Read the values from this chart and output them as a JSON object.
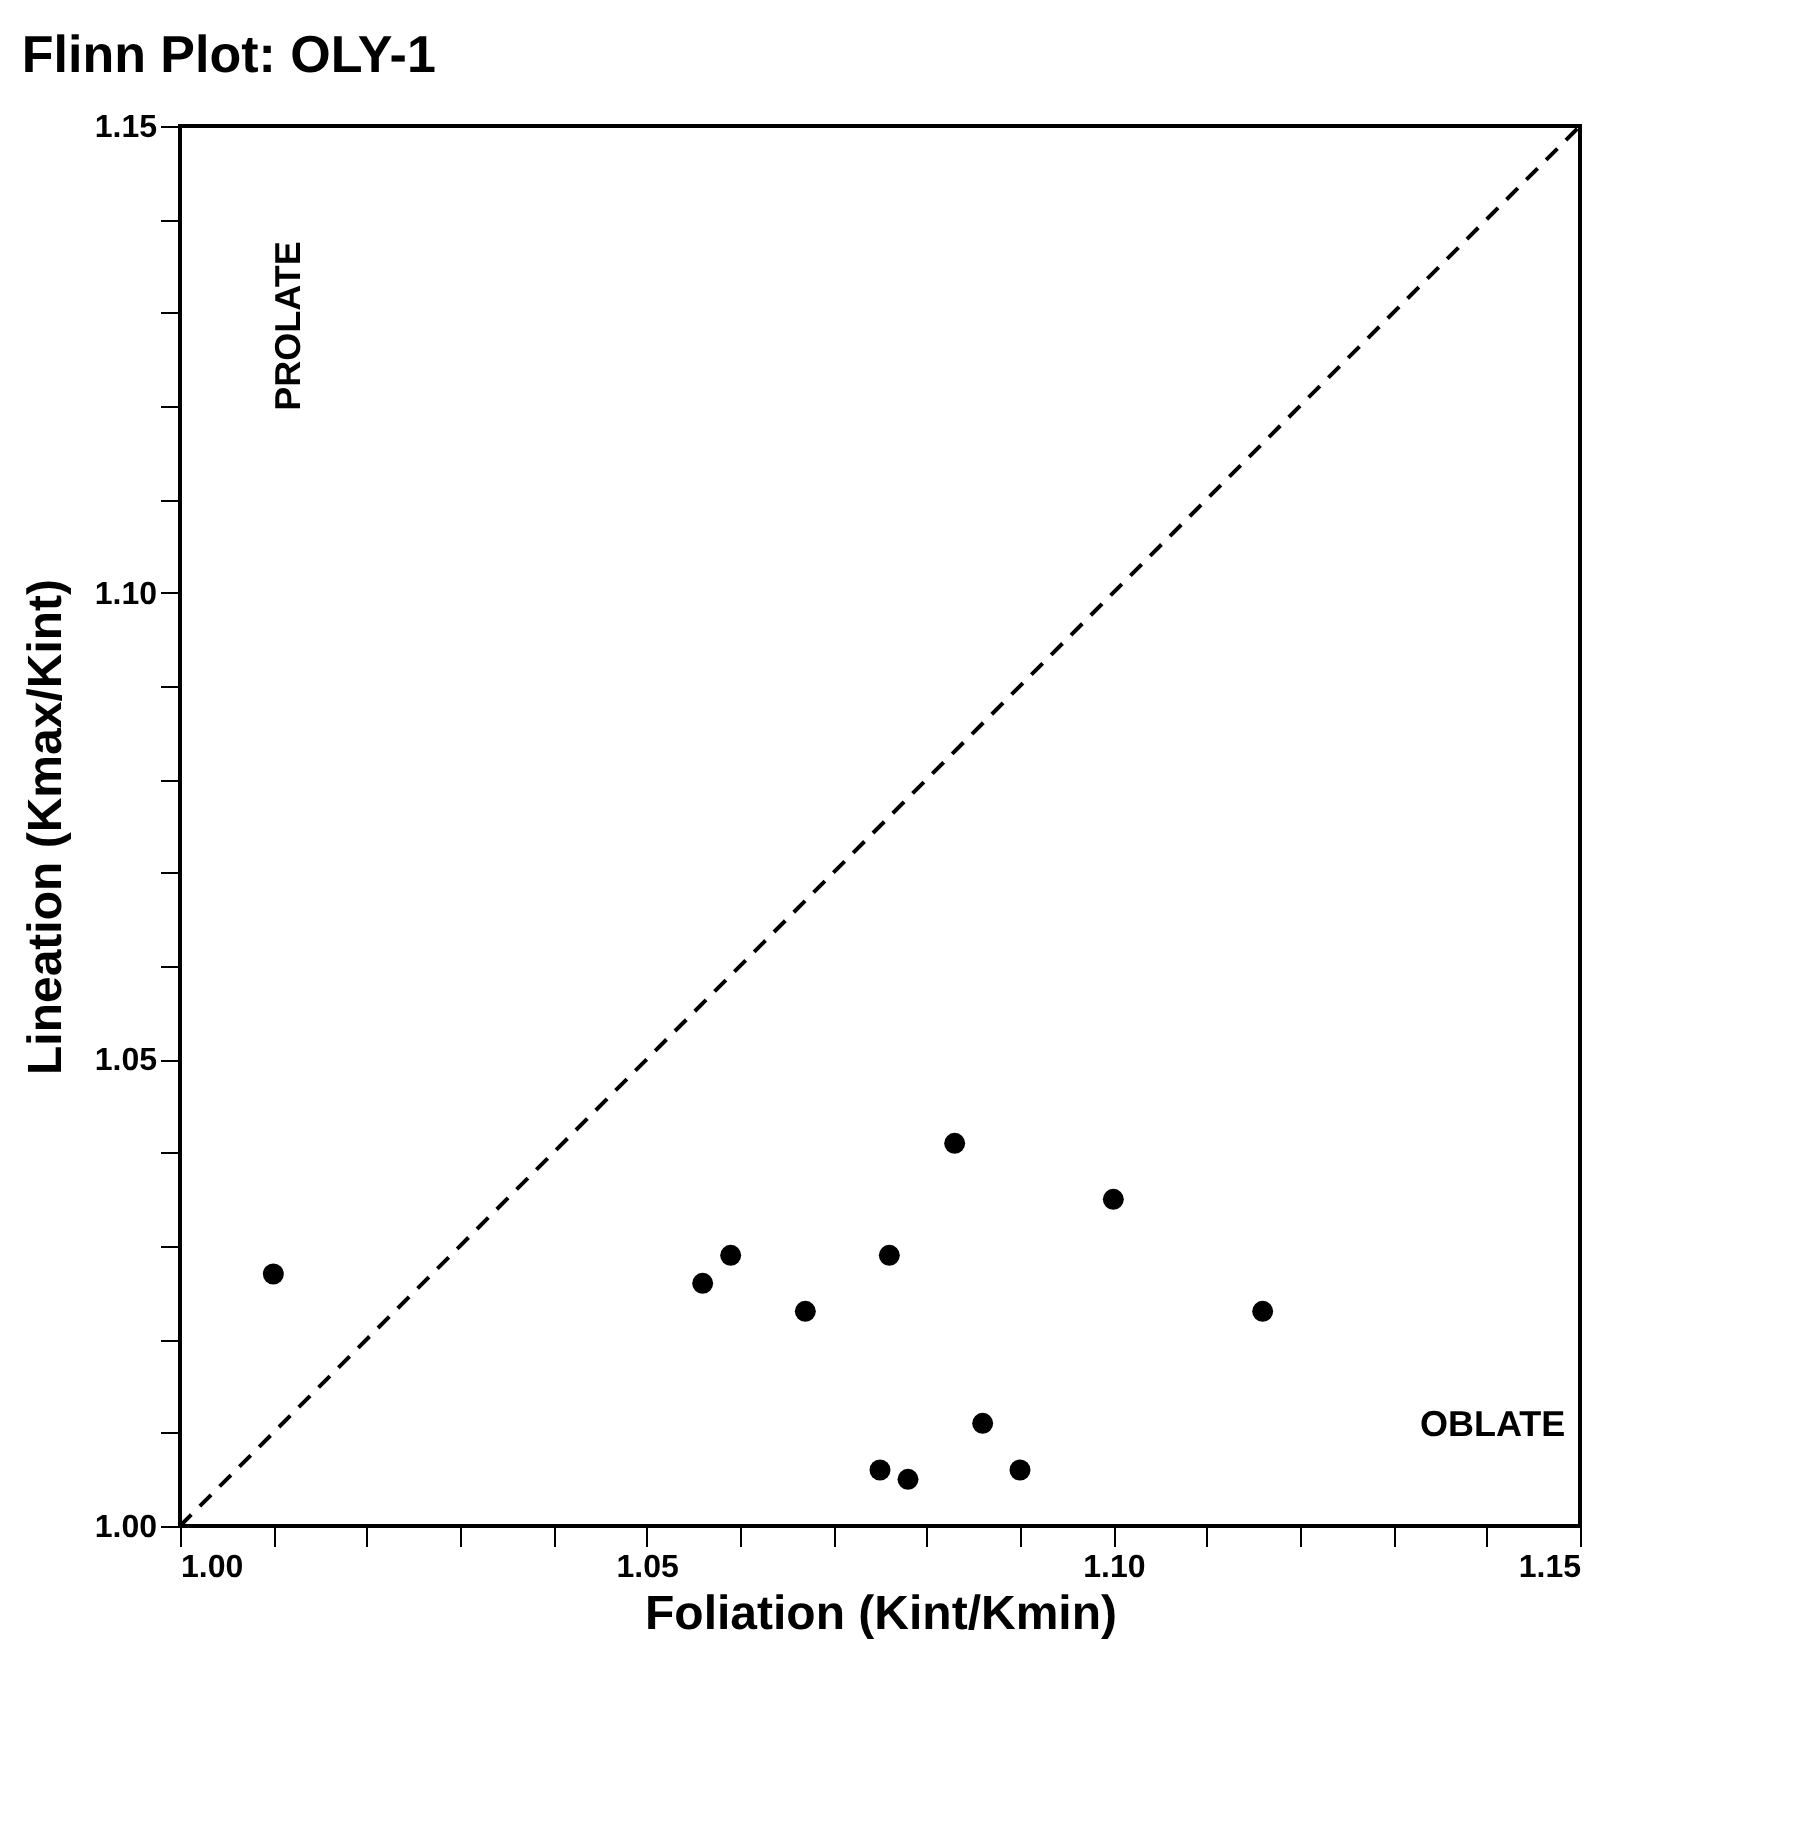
{
  "chart_data": {
    "type": "scatter",
    "title": "Flinn Plot: OLY-1",
    "xlabel": "Foliation (Kint/Kmin)",
    "ylabel": "Lineation (Kmax/Kint)",
    "xlim": [
      1.0,
      1.15
    ],
    "ylim": [
      1.0,
      1.15
    ],
    "xticks": [
      {
        "value": 1.0,
        "label": "1.00"
      },
      {
        "value": 1.01,
        "label": null
      },
      {
        "value": 1.02,
        "label": null
      },
      {
        "value": 1.03,
        "label": null
      },
      {
        "value": 1.04,
        "label": null
      },
      {
        "value": 1.05,
        "label": "1.05"
      },
      {
        "value": 1.06,
        "label": null
      },
      {
        "value": 1.07,
        "label": null
      },
      {
        "value": 1.08,
        "label": null
      },
      {
        "value": 1.09,
        "label": null
      },
      {
        "value": 1.1,
        "label": "1.10"
      },
      {
        "value": 1.11,
        "label": null
      },
      {
        "value": 1.12,
        "label": null
      },
      {
        "value": 1.13,
        "label": null
      },
      {
        "value": 1.14,
        "label": null
      },
      {
        "value": 1.15,
        "label": "1.15"
      }
    ],
    "yticks": [
      {
        "value": 1.0,
        "label": "1.00"
      },
      {
        "value": 1.01,
        "label": null
      },
      {
        "value": 1.02,
        "label": null
      },
      {
        "value": 1.03,
        "label": null
      },
      {
        "value": 1.04,
        "label": null
      },
      {
        "value": 1.05,
        "label": "1.05"
      },
      {
        "value": 1.06,
        "label": null
      },
      {
        "value": 1.07,
        "label": null
      },
      {
        "value": 1.08,
        "label": null
      },
      {
        "value": 1.09,
        "label": null
      },
      {
        "value": 1.1,
        "label": "1.10"
      },
      {
        "value": 1.11,
        "label": null
      },
      {
        "value": 1.12,
        "label": null
      },
      {
        "value": 1.13,
        "label": null
      },
      {
        "value": 1.14,
        "label": null
      },
      {
        "value": 1.15,
        "label": "1.15"
      }
    ],
    "grid": false,
    "series": [
      {
        "type": "scatter",
        "color": "#000000",
        "marker": "circle",
        "x": [
          1.01,
          1.056,
          1.059,
          1.067,
          1.076,
          1.083,
          1.075,
          1.078,
          1.086,
          1.09,
          1.1,
          1.116
        ],
        "values": [
          1.027,
          1.026,
          1.029,
          1.023,
          1.029,
          1.041,
          1.006,
          1.005,
          1.011,
          1.006,
          1.035,
          1.023
        ]
      },
      {
        "type": "line",
        "color": "#000000",
        "line_style": "dashed",
        "marker": "none",
        "x": [
          1.0,
          1.15
        ],
        "values": [
          1.0,
          1.15
        ]
      }
    ],
    "annotations": [
      "PROLATE",
      "OBLATE"
    ]
  }
}
